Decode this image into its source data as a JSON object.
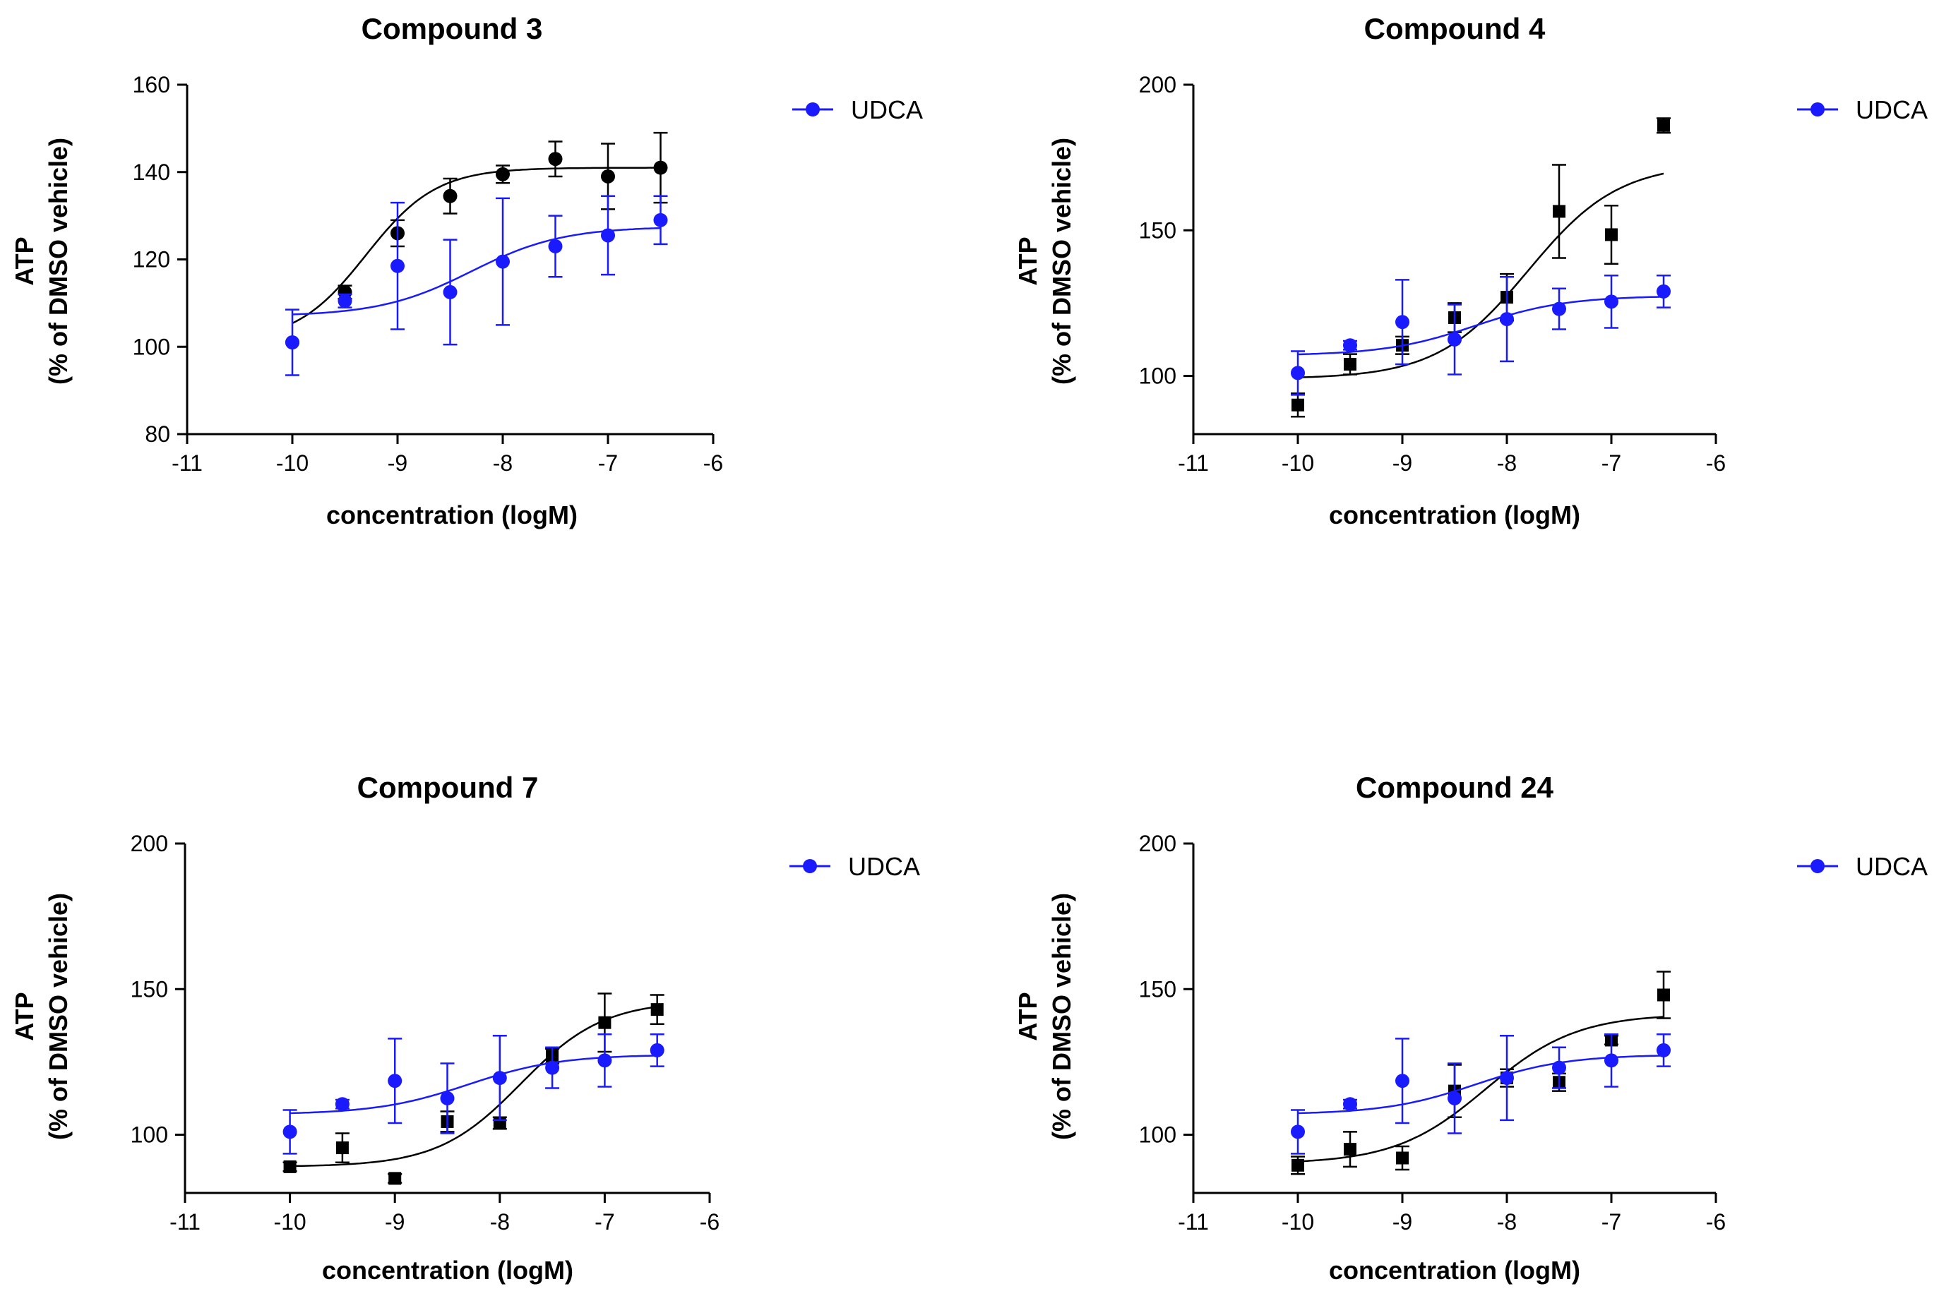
{
  "colors": {
    "compound": "#000000",
    "udca": "#1a1aff",
    "axis": "#000000"
  },
  "chart_data": [
    {
      "type": "scatter",
      "title": "Compound 3",
      "xlabel": "concentration (logM)",
      "ylabel_line1": "ATP",
      "ylabel_line2": "(% of  DMSO vehicle)",
      "xlim": [
        -11,
        -6
      ],
      "ylim": [
        80,
        160
      ],
      "xticks": [
        -11,
        -10,
        -9,
        -8,
        -7,
        -6
      ],
      "yticks": [
        80,
        100,
        120,
        140,
        160
      ],
      "legend": {
        "label": "UDCA",
        "position": "top-right"
      },
      "series": [
        {
          "name": "Compound 3",
          "marker": "circle",
          "color": "#000000",
          "x": [
            -10,
            -9.5,
            -9,
            -8.5,
            -8,
            -7.5,
            -7,
            -6.5
          ],
          "y": [
            101,
            112.5,
            126,
            134.5,
            139.5,
            143,
            139,
            141
          ],
          "err": [
            0,
            1.5,
            3,
            4,
            2,
            4,
            7.5,
            8
          ],
          "fit": {
            "bottom": 101,
            "top": 141,
            "logEC50": -9.3,
            "hill": 1.3
          }
        },
        {
          "name": "UDCA",
          "marker": "circle",
          "color": "#1a1aff",
          "x": [
            -10,
            -9.5,
            -9,
            -8.5,
            -8,
            -7.5,
            -7,
            -6.5
          ],
          "y": [
            101,
            110.5,
            118.5,
            112.5,
            119.5,
            123,
            125.5,
            129
          ],
          "err": [
            7.5,
            1.5,
            14.5,
            12,
            14.5,
            7,
            9,
            5.5
          ],
          "fit": {
            "bottom": 107,
            "top": 127.5,
            "logEC50": -8.3,
            "hill": 1.0
          }
        }
      ]
    },
    {
      "type": "scatter",
      "title": "Compound 4",
      "xlabel": "concentration (logM)",
      "ylabel_line1": "ATP",
      "ylabel_line2": "(% of  DMSO vehicle)",
      "xlim": [
        -11,
        -6
      ],
      "ylim": [
        80,
        200
      ],
      "xticks": [
        -11,
        -10,
        -9,
        -8,
        -7,
        -6
      ],
      "yticks": [
        100,
        150,
        200
      ],
      "legend": {
        "label": "UDCA",
        "position": "top-right"
      },
      "series": [
        {
          "name": "Compound 4",
          "marker": "square",
          "color": "#000000",
          "x": [
            -10,
            -9.5,
            -9,
            -8.5,
            -8,
            -7.5,
            -7,
            -6.5
          ],
          "y": [
            90,
            104,
            110.5,
            120,
            127,
            156.5,
            148.5,
            186
          ],
          "err": [
            4,
            3.5,
            3,
            5,
            8,
            16,
            10,
            2.5
          ],
          "fit": {
            "bottom": 99,
            "top": 173,
            "logEC50": -7.8,
            "hill": 1.0
          }
        },
        {
          "name": "UDCA",
          "marker": "circle",
          "color": "#1a1aff",
          "x": [
            -10,
            -9.5,
            -9,
            -8.5,
            -8,
            -7.5,
            -7,
            -6.5
          ],
          "y": [
            101,
            110.5,
            118.5,
            112.5,
            119.5,
            123,
            125.5,
            129
          ],
          "err": [
            7.5,
            1.5,
            14.5,
            12,
            14.5,
            7,
            9,
            5.5
          ],
          "fit": {
            "bottom": 107,
            "top": 127.5,
            "logEC50": -8.3,
            "hill": 1.0
          }
        }
      ]
    },
    {
      "type": "scatter",
      "title": "Compound 7",
      "xlabel": "concentration (logM)",
      "ylabel_line1": "ATP",
      "ylabel_line2": "(% of  DMSO vehicle)",
      "xlim": [
        -11,
        -6
      ],
      "ylim": [
        80,
        200
      ],
      "xticks": [
        -11,
        -10,
        -9,
        -8,
        -7,
        -6
      ],
      "yticks": [
        100,
        150,
        200
      ],
      "legend": {
        "label": "UDCA",
        "position": "top-right"
      },
      "series": [
        {
          "name": "Compound 7",
          "marker": "square",
          "color": "#000000",
          "x": [
            -10,
            -9.5,
            -9,
            -8.5,
            -8,
            -7.5,
            -7,
            -6.5
          ],
          "y": [
            89,
            95.5,
            85,
            104.5,
            104,
            127,
            138.5,
            143
          ],
          "err": [
            1.5,
            5,
            1.5,
            3.5,
            2,
            2.5,
            10,
            5
          ],
          "fit": {
            "bottom": 89,
            "top": 146,
            "logEC50": -7.8,
            "hill": 1.1
          }
        },
        {
          "name": "UDCA",
          "marker": "circle",
          "color": "#1a1aff",
          "x": [
            -10,
            -9.5,
            -9,
            -8.5,
            -8,
            -7.5,
            -7,
            -6.5
          ],
          "y": [
            101,
            110.5,
            118.5,
            112.5,
            119.5,
            123,
            125.5,
            129
          ],
          "err": [
            7.5,
            1.5,
            14.5,
            12,
            14.5,
            7,
            9,
            5.5
          ],
          "fit": {
            "bottom": 107,
            "top": 127.5,
            "logEC50": -8.3,
            "hill": 1.0
          }
        }
      ]
    },
    {
      "type": "scatter",
      "title": "Compound 24",
      "xlabel": "concentration (logM)",
      "ylabel_line1": "ATP",
      "ylabel_line2": "(% of  DMSO vehicle)",
      "xlim": [
        -11,
        -6
      ],
      "ylim": [
        80,
        200
      ],
      "xticks": [
        -11,
        -10,
        -9,
        -8,
        -7,
        -6
      ],
      "yticks": [
        100,
        150,
        200
      ],
      "legend": {
        "label": "UDCA",
        "position": "top-right"
      },
      "series": [
        {
          "name": "Compound 24",
          "marker": "square",
          "color": "#000000",
          "x": [
            -10,
            -9.5,
            -9,
            -8.5,
            -8,
            -7.5,
            -7,
            -6.5
          ],
          "y": [
            89.5,
            95,
            92,
            115,
            119.5,
            118,
            132.5,
            148
          ],
          "err": [
            3,
            6,
            4,
            9,
            3,
            3,
            1.5,
            8
          ],
          "fit": {
            "bottom": 90,
            "top": 141.5,
            "logEC50": -8.2,
            "hill": 1.0
          }
        },
        {
          "name": "UDCA",
          "marker": "circle",
          "color": "#1a1aff",
          "x": [
            -10,
            -9.5,
            -9,
            -8.5,
            -8,
            -7.5,
            -7,
            -6.5
          ],
          "y": [
            101,
            110.5,
            118.5,
            112.5,
            119.5,
            123,
            125.5,
            129
          ],
          "err": [
            7.5,
            1.5,
            14.5,
            12,
            14.5,
            7,
            9,
            5.5
          ],
          "fit": {
            "bottom": 107,
            "top": 127.5,
            "logEC50": -8.3,
            "hill": 1.0
          }
        }
      ]
    }
  ]
}
